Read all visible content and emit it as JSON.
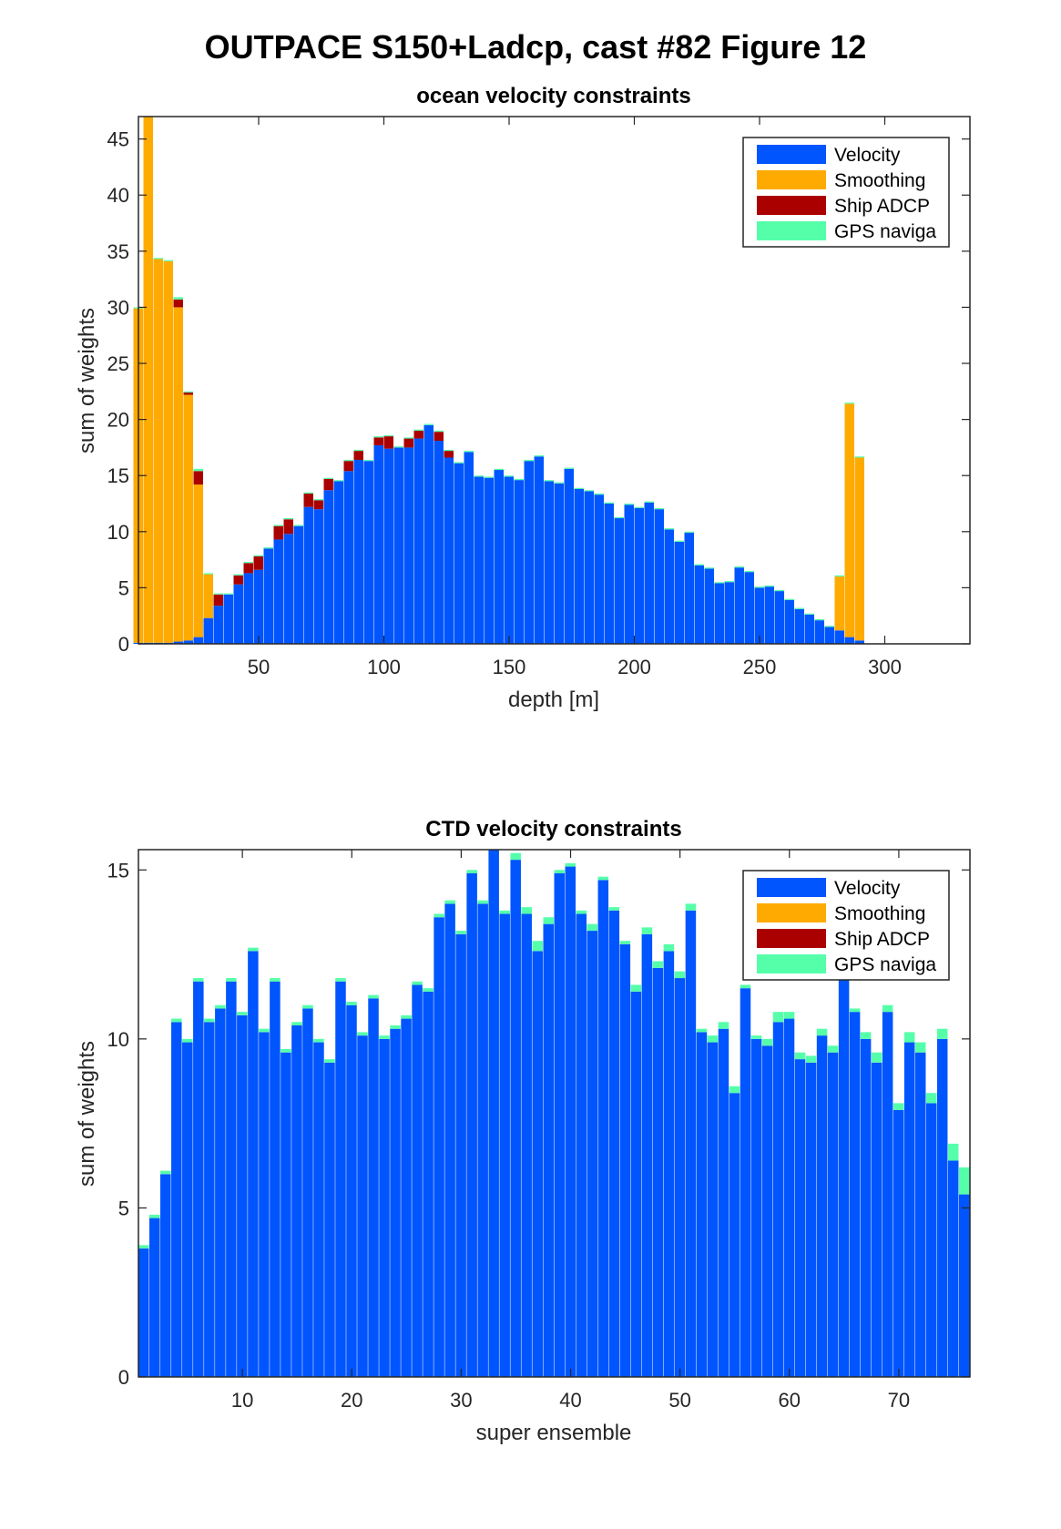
{
  "figure_title": "OUTPACE S150+Ladcp, cast #82  Figure 12",
  "colors": {
    "velocity": "#0055ff",
    "smoothing": "#ffaa00",
    "ship_adcp": "#aa0000",
    "gps": "#55ffaa"
  },
  "chart_data": [
    {
      "type": "bar",
      "stacked": true,
      "title": "ocean velocity constraints",
      "xlabel": "depth [m]",
      "ylabel": "sum of weights",
      "xlim": [
        2,
        334
      ],
      "ylim": [
        0,
        47
      ],
      "xticks": [
        50,
        100,
        150,
        200,
        250,
        300
      ],
      "yticks": [
        0,
        5,
        10,
        15,
        20,
        25,
        30,
        35,
        40,
        45
      ],
      "legend_position": "top-right",
      "x_start": 2,
      "bin_width": 4,
      "series": [
        {
          "name": "Velocity",
          "color": "#0055ff",
          "values": [
            0.1,
            0.1,
            0.1,
            0.1,
            0.2,
            0.3,
            0.6,
            2.3,
            3.4,
            4.4,
            5.3,
            6.3,
            6.6,
            8.5,
            9.3,
            9.8,
            10.5,
            12.2,
            12.0,
            13.7,
            14.5,
            15.4,
            16.4,
            16.3,
            17.7,
            17.4,
            17.5,
            17.5,
            18.3,
            19.5,
            18.1,
            16.6,
            16.1,
            17.1,
            14.9,
            14.8,
            15.5,
            14.9,
            14.6,
            16.3,
            16.7,
            14.5,
            14.3,
            15.6,
            13.8,
            13.6,
            13.3,
            12.5,
            11.2,
            12.4,
            12.1,
            12.6,
            12.0,
            10.2,
            9.1,
            9.9,
            7.0,
            6.7,
            5.4,
            5.5,
            6.8,
            6.4,
            5.0,
            5.1,
            4.7,
            3.9,
            3.1,
            2.6,
            2.1,
            1.5,
            1.2,
            0.6,
            0.3
          ]
        },
        {
          "name": "Smoothing",
          "color": "#ffaa00",
          "values": [
            29.8,
            46.9,
            34.2,
            34.0,
            29.8,
            21.9,
            13.6,
            3.9,
            0,
            0,
            0,
            0,
            0,
            0,
            0,
            0,
            0,
            0,
            0,
            0,
            0,
            0,
            0,
            0,
            0,
            0,
            0,
            0,
            0,
            0,
            0,
            0,
            0,
            0,
            0,
            0,
            0,
            0,
            0,
            0,
            0,
            0,
            0,
            0,
            0,
            0,
            0,
            0,
            0,
            0,
            0,
            0,
            0,
            0,
            0,
            0,
            0,
            0,
            0,
            0,
            0,
            0,
            0,
            0,
            0,
            0,
            0,
            0,
            0,
            0,
            4.8,
            20.8,
            16.3
          ]
        },
        {
          "name": "Ship ADCP",
          "color": "#aa0000",
          "values": [
            0,
            0,
            0,
            0,
            0.7,
            0.2,
            1.2,
            0,
            1.0,
            0,
            0.8,
            0.9,
            1.2,
            0,
            1.2,
            1.3,
            0,
            1.2,
            0.8,
            1.0,
            0,
            0.9,
            0.8,
            0,
            0.7,
            1.1,
            0,
            0.8,
            0.7,
            0,
            0.8,
            0.6,
            0,
            0,
            0,
            0,
            0,
            0,
            0,
            0,
            0,
            0,
            0,
            0,
            0,
            0,
            0,
            0,
            0,
            0,
            0,
            0,
            0,
            0,
            0,
            0,
            0,
            0,
            0,
            0,
            0,
            0,
            0,
            0,
            0,
            0,
            0,
            0,
            0,
            0,
            0,
            0,
            0
          ]
        },
        {
          "name": "GPS naviga",
          "color": "#55ffaa",
          "values": [
            0.1,
            0.1,
            0.1,
            0.1,
            0.2,
            0.1,
            0.2,
            0.1,
            0.1,
            0.1,
            0.1,
            0.1,
            0.1,
            0.1,
            0.1,
            0.1,
            0.1,
            0.1,
            0.1,
            0.1,
            0.1,
            0.1,
            0.1,
            0.1,
            0.1,
            0.1,
            0.1,
            0.1,
            0.1,
            0.1,
            0.1,
            0.1,
            0.1,
            0.1,
            0.1,
            0.1,
            0.1,
            0.1,
            0.1,
            0.1,
            0.1,
            0.1,
            0.1,
            0.1,
            0.1,
            0.1,
            0.1,
            0.1,
            0.1,
            0.1,
            0.1,
            0.1,
            0.1,
            0.1,
            0.1,
            0.1,
            0.1,
            0.1,
            0.1,
            0.1,
            0.1,
            0.1,
            0.1,
            0.1,
            0.1,
            0.1,
            0.1,
            0.1,
            0.1,
            0.1,
            0.1,
            0.1,
            0.1
          ]
        }
      ]
    },
    {
      "type": "bar",
      "stacked": true,
      "title": "CTD velocity constraints",
      "xlabel": "super ensemble",
      "ylabel": "sum of weights",
      "xlim": [
        0.5,
        76.5
      ],
      "ylim": [
        0,
        15.6
      ],
      "xticks": [
        10,
        20,
        30,
        40,
        50,
        60,
        70
      ],
      "yticks": [
        0,
        5,
        10,
        15
      ],
      "legend_position": "top-right",
      "x_start": 1,
      "bin_width": 1,
      "series": [
        {
          "name": "Velocity",
          "color": "#0055ff",
          "values": [
            3.8,
            4.7,
            6.0,
            10.5,
            9.9,
            11.7,
            10.5,
            10.9,
            11.7,
            10.7,
            12.6,
            10.2,
            11.7,
            9.6,
            10.4,
            10.9,
            9.9,
            9.3,
            11.7,
            11.0,
            10.1,
            11.2,
            10.0,
            10.3,
            10.6,
            11.6,
            11.4,
            13.6,
            14.0,
            13.1,
            14.9,
            14.0,
            15.6,
            13.7,
            15.3,
            13.7,
            12.6,
            13.4,
            14.9,
            15.1,
            13.7,
            13.2,
            14.7,
            13.8,
            12.8,
            11.4,
            13.1,
            12.1,
            12.6,
            11.8,
            13.8,
            10.2,
            9.9,
            10.3,
            8.4,
            11.5,
            10.0,
            9.8,
            10.5,
            10.6,
            9.4,
            9.3,
            10.1,
            9.6,
            11.8,
            10.8,
            10.0,
            9.3,
            10.8,
            7.9,
            9.9,
            9.6,
            8.1,
            10.0,
            6.4,
            5.4
          ]
        },
        {
          "name": "Smoothing",
          "color": "#ffaa00",
          "values": [
            0,
            0,
            0,
            0,
            0,
            0,
            0,
            0,
            0,
            0,
            0,
            0,
            0,
            0,
            0,
            0,
            0,
            0,
            0,
            0,
            0,
            0,
            0,
            0,
            0,
            0,
            0,
            0,
            0,
            0,
            0,
            0,
            0,
            0,
            0,
            0,
            0,
            0,
            0,
            0,
            0,
            0,
            0,
            0,
            0,
            0,
            0,
            0,
            0,
            0,
            0,
            0,
            0,
            0,
            0,
            0,
            0,
            0,
            0,
            0,
            0,
            0,
            0,
            0,
            0,
            0,
            0,
            0,
            0,
            0,
            0,
            0,
            0,
            0,
            0,
            0
          ]
        },
        {
          "name": "Ship ADCP",
          "color": "#aa0000",
          "values": [
            0,
            0,
            0,
            0,
            0,
            0,
            0,
            0,
            0,
            0,
            0,
            0,
            0,
            0,
            0,
            0,
            0,
            0,
            0,
            0,
            0,
            0,
            0,
            0,
            0,
            0,
            0,
            0,
            0,
            0,
            0,
            0,
            0,
            0,
            0,
            0,
            0,
            0,
            0,
            0,
            0,
            0,
            0,
            0,
            0,
            0,
            0,
            0,
            0,
            0,
            0,
            0,
            0,
            0,
            0,
            0,
            0,
            0,
            0,
            0,
            0,
            0,
            0,
            0,
            0,
            0,
            0,
            0,
            0,
            0,
            0,
            0,
            0,
            0,
            0,
            0
          ]
        },
        {
          "name": "GPS naviga",
          "color": "#55ffaa",
          "values": [
            0.1,
            0.1,
            0.1,
            0.1,
            0.1,
            0.1,
            0.1,
            0.1,
            0.1,
            0.1,
            0.1,
            0.1,
            0.1,
            0.1,
            0.1,
            0.1,
            0.1,
            0.1,
            0.1,
            0.1,
            0.1,
            0.1,
            0.1,
            0.1,
            0.1,
            0.1,
            0.1,
            0.1,
            0.1,
            0.1,
            0.1,
            0.1,
            0.1,
            0.1,
            0.2,
            0.2,
            0.3,
            0.2,
            0.1,
            0.1,
            0.1,
            0.2,
            0.1,
            0.1,
            0.1,
            0.2,
            0.2,
            0.2,
            0.2,
            0.2,
            0.2,
            0.1,
            0.2,
            0.2,
            0.2,
            0.1,
            0.1,
            0.2,
            0.3,
            0.2,
            0.2,
            0.2,
            0.2,
            0.2,
            0.3,
            0.1,
            0.2,
            0.3,
            0.2,
            0.2,
            0.3,
            0.3,
            0.3,
            0.3,
            0.5,
            0.8
          ]
        }
      ]
    }
  ]
}
